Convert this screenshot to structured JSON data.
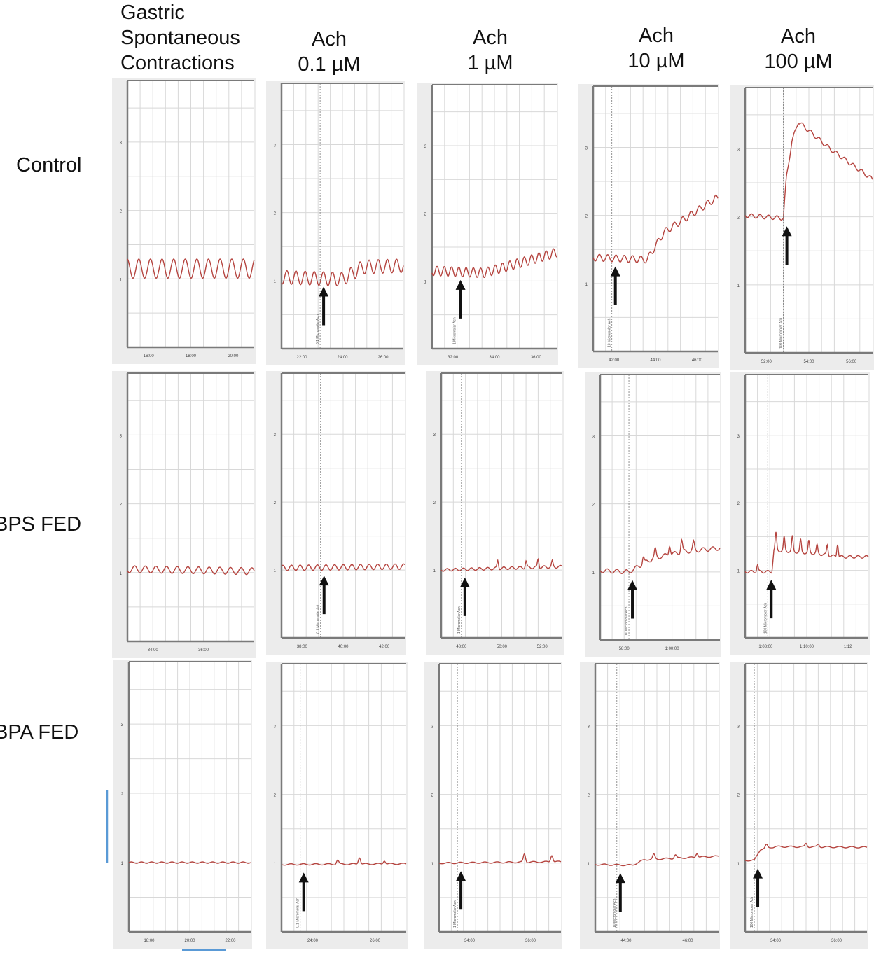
{
  "column_headers": [
    {
      "lines": [
        "Gastric",
        "Spontaneous",
        "Contractions"
      ]
    },
    {
      "lines": [
        "Ach",
        "0.1 µM"
      ]
    },
    {
      "lines": [
        "Ach",
        "1 µM"
      ]
    },
    {
      "lines": [
        "Ach",
        "10 µM"
      ]
    },
    {
      "lines": [
        "Ach",
        "100 µM"
      ]
    }
  ],
  "row_labels": [
    "Control",
    "BPS FED",
    "BPA FED"
  ],
  "colors": {
    "trace": "#b5443f",
    "grid": "#d8d8d8",
    "axis": "#7a7a7a",
    "arrow": "#111111",
    "scale_bar": "#5a9ad6"
  },
  "chart_data": [
    {
      "type": "line",
      "row": "Control",
      "column": "Gastric Spontaneous Contractions",
      "ylim": [
        0,
        3.9
      ],
      "y_ticks": [
        "1",
        "2",
        "3"
      ],
      "x_range": [
        15,
        21
      ],
      "x_ticks": [
        {
          "v": 16,
          "label": "16:00"
        },
        {
          "v": 18,
          "label": "18:00"
        },
        {
          "v": 20,
          "label": "20:00"
        }
      ],
      "ach_at": null,
      "marker_label": "",
      "points": [
        [
          15,
          1.15
        ],
        [
          21,
          1.15
        ]
      ],
      "osc_amp": 0.14,
      "osc_period": 0.55,
      "spikes": []
    },
    {
      "type": "line",
      "row": "Control",
      "column": "Ach 0.1 µM",
      "ylim": [
        0,
        3.9
      ],
      "y_ticks": [
        "1",
        "2",
        "3"
      ],
      "x_range": [
        21,
        27
      ],
      "x_ticks": [
        {
          "v": 22,
          "label": "22:00"
        },
        {
          "v": 24,
          "label": "24:00"
        },
        {
          "v": 26,
          "label": "26:00"
        }
      ],
      "ach_at": 22.9,
      "marker_label": "0.1 Micromolar Ach",
      "points": [
        [
          21,
          1.05
        ],
        [
          24,
          1.02
        ],
        [
          25,
          1.2
        ],
        [
          27,
          1.22
        ]
      ],
      "osc_amp": 0.1,
      "osc_period": 0.45,
      "spikes": []
    },
    {
      "type": "line",
      "row": "Control",
      "column": "Ach 1 µM",
      "ylim": [
        0,
        3.9
      ],
      "y_ticks": [
        "1",
        "2",
        "3"
      ],
      "x_range": [
        31,
        37
      ],
      "x_ticks": [
        {
          "v": 32,
          "label": "32:00"
        },
        {
          "v": 34,
          "label": "34:00"
        },
        {
          "v": 36,
          "label": "36:00"
        }
      ],
      "ach_at": 32.2,
      "marker_label": "1 Micromolar Ach",
      "points": [
        [
          31,
          1.15
        ],
        [
          33.5,
          1.12
        ],
        [
          37,
          1.42
        ]
      ],
      "osc_amp": 0.07,
      "osc_period": 0.35,
      "spikes": []
    },
    {
      "type": "line",
      "row": "Control",
      "column": "Ach 10 µM",
      "ylim": [
        0,
        3.9
      ],
      "y_ticks": [
        "1",
        "2",
        "3"
      ],
      "x_range": [
        41,
        47
      ],
      "x_ticks": [
        {
          "v": 42,
          "label": "42:00"
        },
        {
          "v": 44,
          "label": "44:00"
        },
        {
          "v": 46,
          "label": "46:00"
        }
      ],
      "ach_at": 41.9,
      "marker_label": "10 Micromolar Ach",
      "points": [
        [
          41,
          1.38
        ],
        [
          43.6,
          1.35
        ],
        [
          44.4,
          1.75
        ],
        [
          46.9,
          2.25
        ]
      ],
      "osc_amp": 0.05,
      "osc_period": 0.4,
      "spikes": []
    },
    {
      "type": "line",
      "row": "Control",
      "column": "Ach 100 µM",
      "ylim": [
        0,
        3.9
      ],
      "y_ticks": [
        "1",
        "2",
        "3"
      ],
      "x_range": [
        51,
        57
      ],
      "x_ticks": [
        {
          "v": 52,
          "label": "52:00"
        },
        {
          "v": 54,
          "label": "54:00"
        },
        {
          "v": 56,
          "label": "56:00"
        }
      ],
      "ach_at": 52.8,
      "marker_label": "100 Micromolar Ach",
      "points": [
        [
          51,
          2.02
        ],
        [
          52.8,
          1.98
        ],
        [
          52.95,
          2.6
        ],
        [
          53.2,
          3.1
        ],
        [
          53.5,
          3.4
        ],
        [
          55,
          3.0
        ],
        [
          57,
          2.55
        ]
      ],
      "osc_amp": 0.03,
      "osc_period": 0.4,
      "spikes": []
    },
    {
      "type": "line",
      "row": "BPS FED",
      "column": "Gastric Spontaneous Contractions",
      "ylim": [
        0,
        3.9
      ],
      "y_ticks": [
        "1",
        "2",
        "3"
      ],
      "x_range": [
        33,
        38
      ],
      "x_ticks": [
        {
          "v": 34,
          "label": "34:00"
        },
        {
          "v": 36,
          "label": "36:00"
        }
      ],
      "ach_at": null,
      "marker_label": "",
      "points": [
        [
          33,
          1.05
        ],
        [
          38,
          1.02
        ]
      ],
      "osc_amp": 0.05,
      "osc_period": 0.42,
      "spikes": []
    },
    {
      "type": "line",
      "row": "BPS FED",
      "column": "Ach 0.1 µM",
      "ylim": [
        0,
        3.9
      ],
      "y_ticks": [
        "1",
        "2",
        "3"
      ],
      "x_range": [
        37,
        43
      ],
      "x_ticks": [
        {
          "v": 38,
          "label": "38:00"
        },
        {
          "v": 40,
          "label": "40:00"
        },
        {
          "v": 42,
          "label": "42:00"
        }
      ],
      "ach_at": 38.9,
      "marker_label": "0.1 Micromolar Ach",
      "points": [
        [
          37,
          1.03
        ],
        [
          43,
          1.05
        ]
      ],
      "osc_amp": 0.04,
      "osc_period": 0.42,
      "spikes": []
    },
    {
      "type": "line",
      "row": "BPS FED",
      "column": "Ach 1 µM",
      "ylim": [
        0,
        3.9
      ],
      "y_ticks": [
        "1",
        "2",
        "3"
      ],
      "x_range": [
        47,
        53
      ],
      "x_ticks": [
        {
          "v": 48,
          "label": "48:00"
        },
        {
          "v": 50,
          "label": "50:00"
        },
        {
          "v": 52,
          "label": "52:00"
        }
      ],
      "ach_at": 48.0,
      "marker_label": "1 Micromolar Ach",
      "points": [
        [
          47,
          1.0
        ],
        [
          53,
          1.05
        ]
      ],
      "osc_amp": 0.02,
      "osc_period": 0.4,
      "spikes": [
        [
          49.8,
          0.12
        ],
        [
          51.2,
          0.1
        ],
        [
          51.8,
          0.12
        ],
        [
          52.5,
          0.08
        ]
      ]
    },
    {
      "type": "line",
      "row": "BPS FED",
      "column": "Ach 10 µM",
      "ylim": [
        0,
        3.9
      ],
      "y_ticks": [
        "1",
        "2",
        "3"
      ],
      "x_range": [
        57,
        62
      ],
      "x_ticks": [
        {
          "v": 58,
          "label": "58:00"
        },
        {
          "v": 60,
          "label": "1:00:00"
        }
      ],
      "ach_at": 58.2,
      "marker_label": "10 Micromolar Ach",
      "points": [
        [
          57,
          1.02
        ],
        [
          58.2,
          1.0
        ],
        [
          59.2,
          1.2
        ],
        [
          60.5,
          1.3
        ],
        [
          62,
          1.35
        ]
      ],
      "osc_amp": 0.03,
      "osc_period": 0.4,
      "spikes": [
        [
          58.8,
          0.1
        ],
        [
          59.3,
          0.12
        ],
        [
          59.9,
          0.15
        ],
        [
          60.4,
          0.18
        ],
        [
          60.9,
          0.12
        ]
      ]
    },
    {
      "type": "line",
      "row": "BPS FED",
      "column": "Ach 100 µM",
      "ylim": [
        0,
        3.9
      ],
      "y_ticks": [
        "1",
        "2",
        "3"
      ],
      "x_range": [
        67,
        73
      ],
      "x_ticks": [
        {
          "v": 68,
          "label": "1:08:00"
        },
        {
          "v": 70,
          "label": "1:10:00"
        },
        {
          "v": 72,
          "label": "1:12"
        }
      ],
      "ach_at": 68.1,
      "marker_label": "100 Micromolar Ach",
      "points": [
        [
          67,
          0.98
        ],
        [
          68.3,
          0.98
        ],
        [
          68.4,
          1.3
        ],
        [
          70.5,
          1.25
        ],
        [
          71.5,
          1.2
        ],
        [
          73,
          1.2
        ]
      ],
      "osc_amp": 0.02,
      "osc_period": 0.4,
      "spikes": [
        [
          67.6,
          0.1
        ],
        [
          68.5,
          0.25
        ],
        [
          68.9,
          0.2
        ],
        [
          69.3,
          0.22
        ],
        [
          69.7,
          0.18
        ],
        [
          70.1,
          0.17
        ],
        [
          70.5,
          0.12
        ],
        [
          71.0,
          0.15
        ],
        [
          71.5,
          0.2
        ]
      ]
    },
    {
      "type": "line",
      "row": "BPA FED",
      "column": "Gastric Spontaneous Contractions",
      "ylim": [
        0,
        3.9
      ],
      "y_ticks": [
        "1",
        "2",
        "3"
      ],
      "x_range": [
        17,
        23
      ],
      "x_ticks": [
        {
          "v": 18,
          "label": "18:00"
        },
        {
          "v": 20,
          "label": "20:00"
        },
        {
          "v": 22,
          "label": "22:00"
        }
      ],
      "ach_at": null,
      "marker_label": "",
      "points": [
        [
          17,
          1.0
        ],
        [
          23,
          1.0
        ]
      ],
      "osc_amp": 0.01,
      "osc_period": 0.5,
      "spikes": []
    },
    {
      "type": "line",
      "row": "BPA FED",
      "column": "Ach 0.1 µM",
      "ylim": [
        0,
        3.9
      ],
      "y_ticks": [
        "1",
        "2",
        "3"
      ],
      "x_range": [
        23,
        27
      ],
      "x_ticks": [
        {
          "v": 24,
          "label": "24:00"
        },
        {
          "v": 26,
          "label": "26:00"
        }
      ],
      "ach_at": 23.6,
      "marker_label": "0.1 Micromolar Ach",
      "points": [
        [
          23,
          0.98
        ],
        [
          27,
          0.99
        ]
      ],
      "osc_amp": 0.01,
      "osc_period": 0.4,
      "spikes": [
        [
          24.8,
          0.06
        ],
        [
          25.5,
          0.1
        ],
        [
          26.3,
          0.05
        ]
      ]
    },
    {
      "type": "line",
      "row": "BPA FED",
      "column": "Ach 1 µM",
      "ylim": [
        0,
        3.9
      ],
      "y_ticks": [
        "1",
        "2",
        "3"
      ],
      "x_range": [
        33,
        37
      ],
      "x_ticks": [
        {
          "v": 34,
          "label": "34:00"
        },
        {
          "v": 36,
          "label": "36:00"
        }
      ],
      "ach_at": 33.6,
      "marker_label": "1 Micromolar Ach",
      "points": [
        [
          33,
          1.0
        ],
        [
          37,
          1.02
        ]
      ],
      "osc_amp": 0.01,
      "osc_period": 0.4,
      "spikes": [
        [
          35.8,
          0.12
        ],
        [
          36.7,
          0.1
        ]
      ]
    },
    {
      "type": "line",
      "row": "BPA FED",
      "column": "Ach 10 µM",
      "ylim": [
        0,
        3.9
      ],
      "y_ticks": [
        "1",
        "2",
        "3"
      ],
      "x_range": [
        43,
        47
      ],
      "x_ticks": [
        {
          "v": 44,
          "label": "44:00"
        },
        {
          "v": 46,
          "label": "46:00"
        }
      ],
      "ach_at": 43.7,
      "marker_label": "10 Micromolar Ach",
      "points": [
        [
          43,
          0.98
        ],
        [
          44.2,
          0.97
        ],
        [
          44.6,
          1.05
        ],
        [
          47,
          1.1
        ]
      ],
      "osc_amp": 0.01,
      "osc_period": 0.4,
      "spikes": [
        [
          44.9,
          0.07
        ],
        [
          45.6,
          0.05
        ],
        [
          46.3,
          0.06
        ]
      ]
    },
    {
      "type": "line",
      "row": "BPA FED",
      "column": "Ach 100 µM",
      "ylim": [
        0,
        3.9
      ],
      "y_ticks": [
        "1",
        "2",
        "3"
      ],
      "x_range": [
        33,
        37
      ],
      "x_ticks": [
        {
          "v": 34,
          "label": "34:00"
        },
        {
          "v": 36,
          "label": "36:00"
        }
      ],
      "ach_at": 33.3,
      "marker_label": "100 Micromolar Ach",
      "points": [
        [
          33,
          1.04
        ],
        [
          33.3,
          1.04
        ],
        [
          33.5,
          1.2
        ],
        [
          34,
          1.24
        ],
        [
          37,
          1.23
        ]
      ],
      "osc_amp": 0.01,
      "osc_period": 0.4,
      "spikes": [
        [
          33.7,
          0.05
        ],
        [
          35.0,
          0.05
        ],
        [
          35.4,
          0.04
        ]
      ]
    }
  ]
}
